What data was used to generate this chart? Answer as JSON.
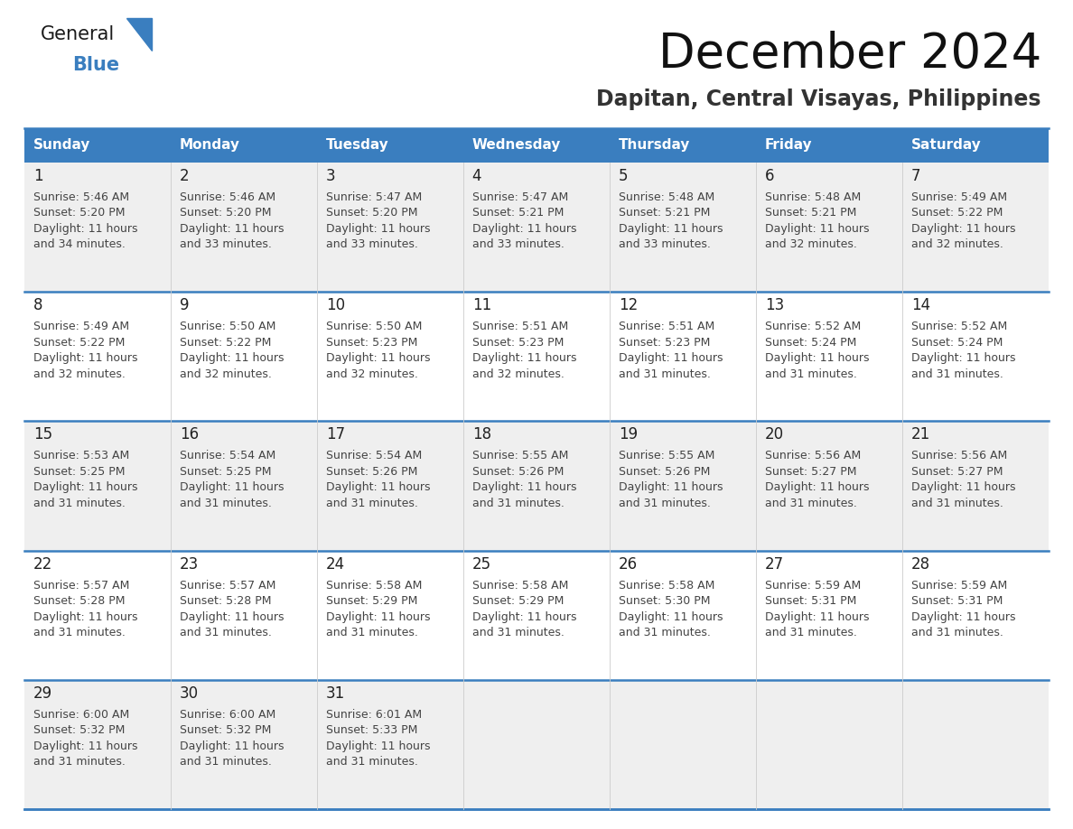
{
  "title": "December 2024",
  "subtitle": "Dapitan, Central Visayas, Philippines",
  "days_of_week": [
    "Sunday",
    "Monday",
    "Tuesday",
    "Wednesday",
    "Thursday",
    "Friday",
    "Saturday"
  ],
  "header_bg": "#3a7ebf",
  "header_text": "#ffffff",
  "row_bg_odd": "#efefef",
  "row_bg_even": "#ffffff",
  "border_color": "#3a7ebf",
  "text_color": "#333333",
  "calendar_data": [
    [
      {
        "day": "1",
        "sunrise": "5:46 AM",
        "sunset": "5:20 PM",
        "daylight_h": "11 hours",
        "daylight_m": "34 minutes"
      },
      {
        "day": "2",
        "sunrise": "5:46 AM",
        "sunset": "5:20 PM",
        "daylight_h": "11 hours",
        "daylight_m": "33 minutes"
      },
      {
        "day": "3",
        "sunrise": "5:47 AM",
        "sunset": "5:20 PM",
        "daylight_h": "11 hours",
        "daylight_m": "33 minutes"
      },
      {
        "day": "4",
        "sunrise": "5:47 AM",
        "sunset": "5:21 PM",
        "daylight_h": "11 hours",
        "daylight_m": "33 minutes"
      },
      {
        "day": "5",
        "sunrise": "5:48 AM",
        "sunset": "5:21 PM",
        "daylight_h": "11 hours",
        "daylight_m": "33 minutes"
      },
      {
        "day": "6",
        "sunrise": "5:48 AM",
        "sunset": "5:21 PM",
        "daylight_h": "11 hours",
        "daylight_m": "32 minutes"
      },
      {
        "day": "7",
        "sunrise": "5:49 AM",
        "sunset": "5:22 PM",
        "daylight_h": "11 hours",
        "daylight_m": "32 minutes"
      }
    ],
    [
      {
        "day": "8",
        "sunrise": "5:49 AM",
        "sunset": "5:22 PM",
        "daylight_h": "11 hours",
        "daylight_m": "32 minutes"
      },
      {
        "day": "9",
        "sunrise": "5:50 AM",
        "sunset": "5:22 PM",
        "daylight_h": "11 hours",
        "daylight_m": "32 minutes"
      },
      {
        "day": "10",
        "sunrise": "5:50 AM",
        "sunset": "5:23 PM",
        "daylight_h": "11 hours",
        "daylight_m": "32 minutes"
      },
      {
        "day": "11",
        "sunrise": "5:51 AM",
        "sunset": "5:23 PM",
        "daylight_h": "11 hours",
        "daylight_m": "32 minutes"
      },
      {
        "day": "12",
        "sunrise": "5:51 AM",
        "sunset": "5:23 PM",
        "daylight_h": "11 hours",
        "daylight_m": "31 minutes"
      },
      {
        "day": "13",
        "sunrise": "5:52 AM",
        "sunset": "5:24 PM",
        "daylight_h": "11 hours",
        "daylight_m": "31 minutes"
      },
      {
        "day": "14",
        "sunrise": "5:52 AM",
        "sunset": "5:24 PM",
        "daylight_h": "11 hours",
        "daylight_m": "31 minutes"
      }
    ],
    [
      {
        "day": "15",
        "sunrise": "5:53 AM",
        "sunset": "5:25 PM",
        "daylight_h": "11 hours",
        "daylight_m": "31 minutes"
      },
      {
        "day": "16",
        "sunrise": "5:54 AM",
        "sunset": "5:25 PM",
        "daylight_h": "11 hours",
        "daylight_m": "31 minutes"
      },
      {
        "day": "17",
        "sunrise": "5:54 AM",
        "sunset": "5:26 PM",
        "daylight_h": "11 hours",
        "daylight_m": "31 minutes"
      },
      {
        "day": "18",
        "sunrise": "5:55 AM",
        "sunset": "5:26 PM",
        "daylight_h": "11 hours",
        "daylight_m": "31 minutes"
      },
      {
        "day": "19",
        "sunrise": "5:55 AM",
        "sunset": "5:26 PM",
        "daylight_h": "11 hours",
        "daylight_m": "31 minutes"
      },
      {
        "day": "20",
        "sunrise": "5:56 AM",
        "sunset": "5:27 PM",
        "daylight_h": "11 hours",
        "daylight_m": "31 minutes"
      },
      {
        "day": "21",
        "sunrise": "5:56 AM",
        "sunset": "5:27 PM",
        "daylight_h": "11 hours",
        "daylight_m": "31 minutes"
      }
    ],
    [
      {
        "day": "22",
        "sunrise": "5:57 AM",
        "sunset": "5:28 PM",
        "daylight_h": "11 hours",
        "daylight_m": "31 minutes"
      },
      {
        "day": "23",
        "sunrise": "5:57 AM",
        "sunset": "5:28 PM",
        "daylight_h": "11 hours",
        "daylight_m": "31 minutes"
      },
      {
        "day": "24",
        "sunrise": "5:58 AM",
        "sunset": "5:29 PM",
        "daylight_h": "11 hours",
        "daylight_m": "31 minutes"
      },
      {
        "day": "25",
        "sunrise": "5:58 AM",
        "sunset": "5:29 PM",
        "daylight_h": "11 hours",
        "daylight_m": "31 minutes"
      },
      {
        "day": "26",
        "sunrise": "5:58 AM",
        "sunset": "5:30 PM",
        "daylight_h": "11 hours",
        "daylight_m": "31 minutes"
      },
      {
        "day": "27",
        "sunrise": "5:59 AM",
        "sunset": "5:31 PM",
        "daylight_h": "11 hours",
        "daylight_m": "31 minutes"
      },
      {
        "day": "28",
        "sunrise": "5:59 AM",
        "sunset": "5:31 PM",
        "daylight_h": "11 hours",
        "daylight_m": "31 minutes"
      }
    ],
    [
      {
        "day": "29",
        "sunrise": "6:00 AM",
        "sunset": "5:32 PM",
        "daylight_h": "11 hours",
        "daylight_m": "31 minutes"
      },
      {
        "day": "30",
        "sunrise": "6:00 AM",
        "sunset": "5:32 PM",
        "daylight_h": "11 hours",
        "daylight_m": "31 minutes"
      },
      {
        "day": "31",
        "sunrise": "6:01 AM",
        "sunset": "5:33 PM",
        "daylight_h": "11 hours",
        "daylight_m": "31 minutes"
      },
      null,
      null,
      null,
      null
    ]
  ],
  "logo_text_general": "General",
  "logo_text_blue": "Blue",
  "logo_triangle_color": "#3a7ebf",
  "title_fontsize": 38,
  "subtitle_fontsize": 17,
  "header_fontsize": 11,
  "day_num_fontsize": 12,
  "cell_text_fontsize": 9
}
